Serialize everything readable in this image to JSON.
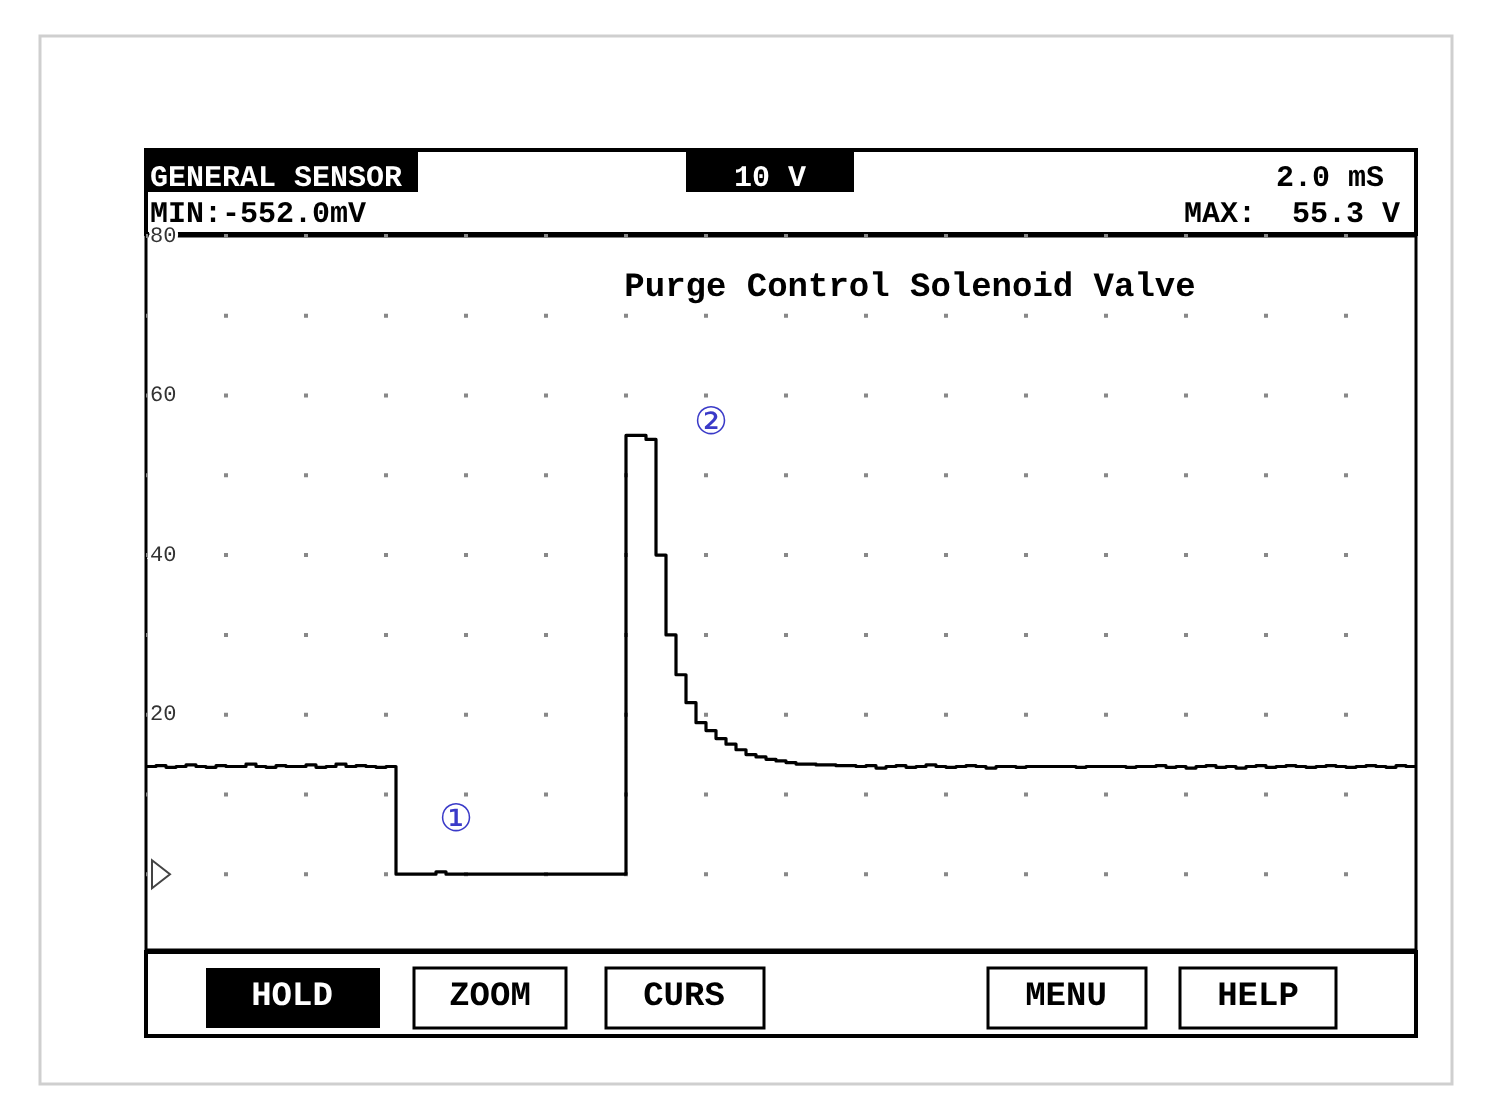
{
  "chart_data": {
    "type": "step",
    "title": "Purge Control Solenoid Valve",
    "categories": [
      null,
      null,
      null,
      null,
      null,
      null,
      null,
      null,
      null,
      null,
      null,
      null,
      null,
      null,
      null,
      null,
      null,
      null,
      null,
      null,
      null,
      null,
      null,
      null,
      null,
      null,
      null,
      null,
      null,
      null,
      null,
      null,
      null,
      null,
      null,
      null,
      null,
      null,
      null,
      null,
      null,
      null,
      null,
      null,
      null,
      null,
      null,
      null,
      null,
      null,
      null,
      null,
      null,
      null,
      null,
      null,
      null,
      null,
      null,
      null,
      null,
      null,
      null,
      null,
      null,
      null,
      null,
      null,
      null,
      null,
      null,
      null,
      null,
      null,
      null,
      null,
      null,
      null,
      null,
      null,
      null,
      null,
      null,
      null,
      null,
      null,
      null,
      null,
      null,
      null,
      null,
      null,
      null,
      null,
      null,
      null,
      null,
      null,
      null,
      null,
      null,
      null,
      null,
      null,
      null,
      null,
      null,
      null,
      null,
      null,
      null,
      null,
      null,
      null,
      null,
      null,
      null,
      null,
      null,
      null,
      null,
      null,
      null,
      null,
      null,
      null,
      null,
      null
    ],
    "series": [
      {
        "color": "#000000",
        "values": [
          13.5,
          13.6,
          13.4,
          13.5,
          13.7,
          13.5,
          13.4,
          13.6,
          13.5,
          13.5,
          13.8,
          13.5,
          13.4,
          13.6,
          13.5,
          13.5,
          13.7,
          13.4,
          13.5,
          13.8,
          13.5,
          13.6,
          13.5,
          13.4,
          13.5,
          0,
          0,
          0,
          0,
          0.3,
          0,
          0,
          0,
          0,
          0,
          0,
          0,
          0,
          0,
          0,
          0,
          0,
          0,
          0,
          0,
          0,
          0,
          0,
          55,
          55,
          54.5,
          40,
          30,
          25,
          21.5,
          19,
          18,
          17,
          16.3,
          15.6,
          15,
          14.7,
          14.4,
          14.2,
          14,
          13.8,
          13.8,
          13.7,
          13.7,
          13.6,
          13.6,
          13.5,
          13.6,
          13.3,
          13.5,
          13.6,
          13.4,
          13.5,
          13.7,
          13.5,
          13.4,
          13.5,
          13.6,
          13.5,
          13.3,
          13.5,
          13.5,
          13.4,
          13.5,
          13.5,
          13.5,
          13.5,
          13.5,
          13.4,
          13.5,
          13.5,
          13.5,
          13.5,
          13.4,
          13.5,
          13.5,
          13.6,
          13.4,
          13.5,
          13.3,
          13.5,
          13.6,
          13.4,
          13.5,
          13.3,
          13.5,
          13.6,
          13.4,
          13.5,
          13.6,
          13.5,
          13.4,
          13.5,
          13.6,
          13.5,
          13.4,
          13.5,
          13.6,
          13.5,
          13.4,
          13.6,
          13.5,
          13.5
        ]
      }
    ],
    "ylim": [
      -9.5,
      80
    ],
    "yticks": [
      {
        "value": 0,
        "label": null
      },
      {
        "value": 10,
        "label": null
      },
      20,
      {
        "value": 30,
        "label": null
      },
      40,
      {
        "value": 50,
        "label": null
      },
      60,
      {
        "value": 70,
        "label": null
      },
      80
    ],
    "grid": true,
    "annotations": [
      "GENERAL SENSOR",
      "10 V",
      "2.0 mS",
      "MIN:-552.0mV",
      "MAX:  55.3 V",
      "HOLD",
      "ZOOM",
      "CURS",
      "MENU",
      "HELP",
      "①",
      "②"
    ]
  }
}
